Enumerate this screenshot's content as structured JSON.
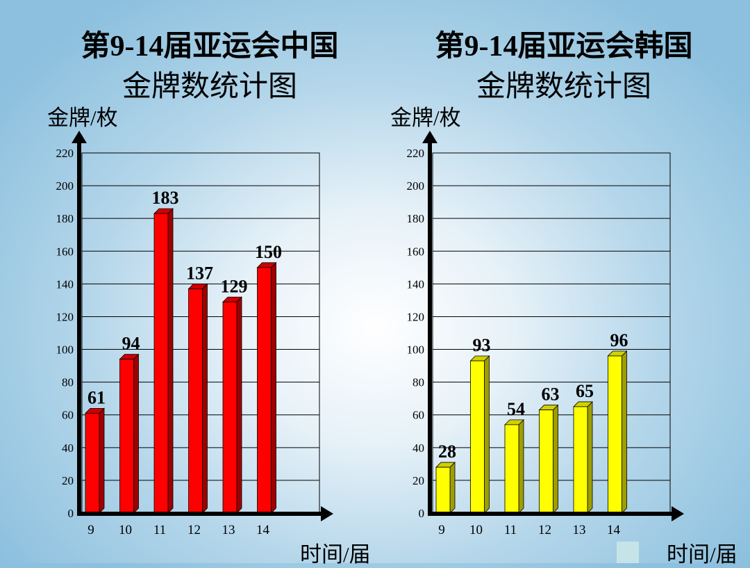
{
  "chart_data": [
    {
      "type": "bar",
      "title": [
        "第9-14届亚运会中国",
        "金牌数统计图"
      ],
      "ylabel": "金牌/枚",
      "xlabel": "时间/届",
      "categories": [
        "9",
        "10",
        "11",
        "12",
        "13",
        "14"
      ],
      "values": [
        61,
        94,
        183,
        137,
        129,
        150
      ],
      "data_labels": [
        "61",
        "94",
        "183",
        "137",
        "129",
        "150"
      ],
      "yticks": [
        "0",
        "20",
        "40",
        "60",
        "80",
        "100",
        "120",
        "140",
        "160",
        "180",
        "200",
        "220"
      ],
      "ylim": [
        0,
        220
      ],
      "grid": true,
      "bar_color": "#ff0000"
    },
    {
      "type": "bar",
      "title": [
        "第9-14届亚运会韩国",
        "金牌数统计图"
      ],
      "ylabel": "金牌/枚",
      "xlabel": "时间/届",
      "categories": [
        "9",
        "10",
        "11",
        "12",
        "13",
        "14"
      ],
      "values": [
        28,
        93,
        54,
        63,
        65,
        96
      ],
      "data_labels": [
        "28",
        "93",
        "54",
        "63",
        "65",
        "96"
      ],
      "yticks": [
        "0",
        "20",
        "40",
        "60",
        "80",
        "100",
        "120",
        "140",
        "160",
        "180",
        "200",
        "220"
      ],
      "ylim": [
        0,
        220
      ],
      "grid": true,
      "bar_color": "#ffff00"
    }
  ]
}
